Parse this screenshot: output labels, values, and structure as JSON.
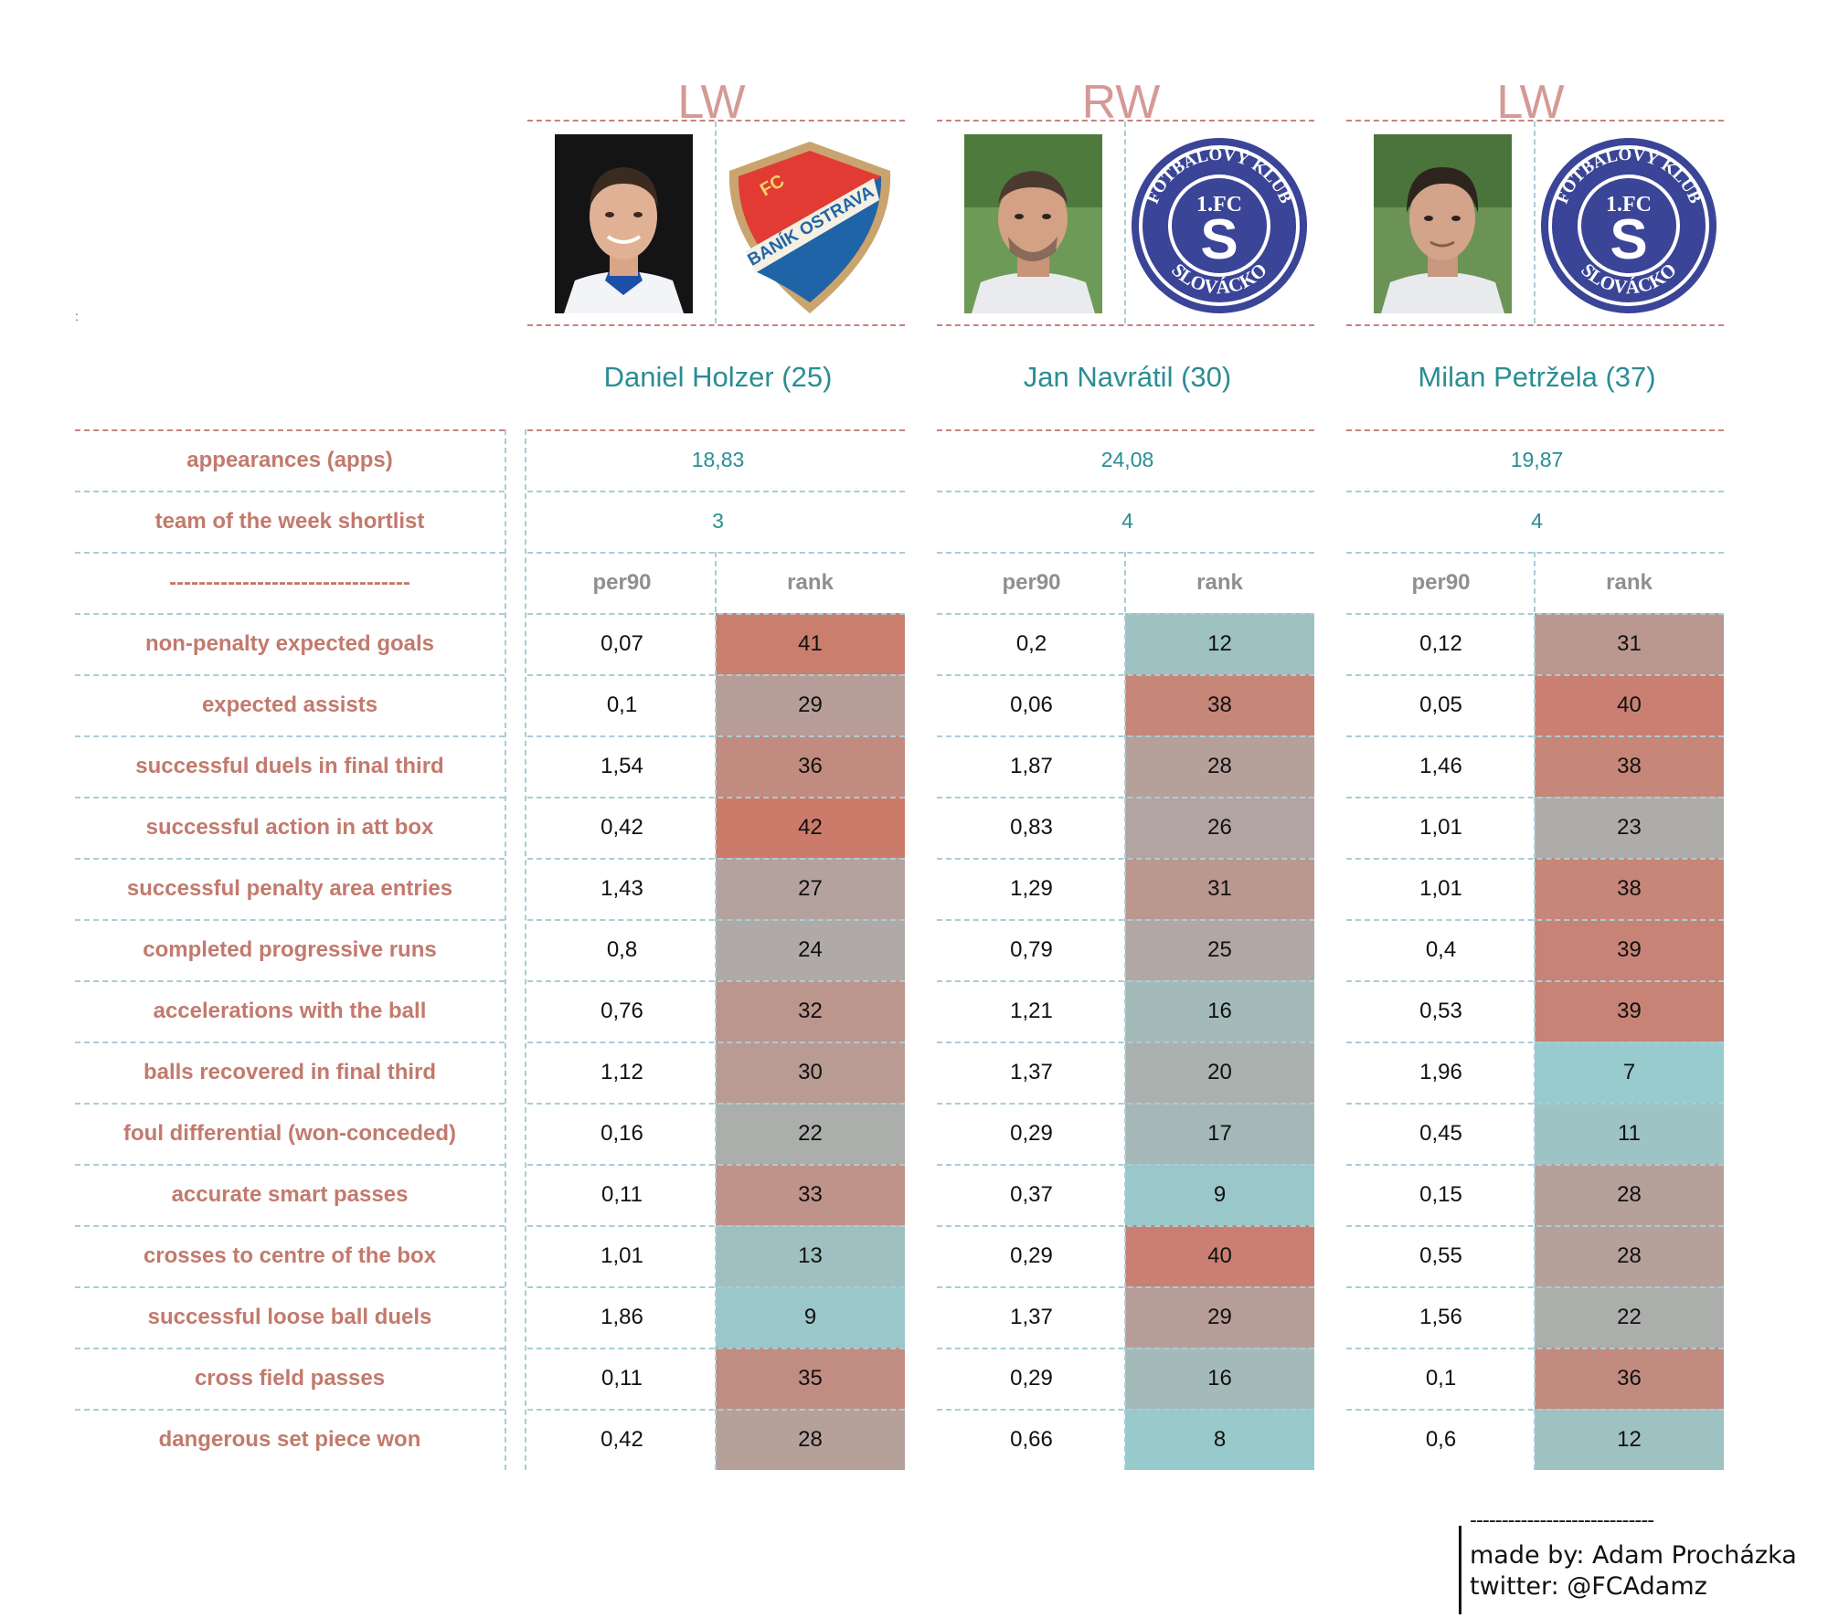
{
  "players": [
    {
      "position": "LW",
      "name": "Daniel Holzer (25)",
      "club": "Baník Ostrava",
      "crest_text_top": "FC",
      "crest_text_main": "BANÍK OSTRAVA",
      "apps": "18,83",
      "totw": "3"
    },
    {
      "position": "RW",
      "name": "Jan Navrátil (30)",
      "club": "1.FC Slovácko",
      "crest_text_top": "FOTBALOVÝ KLUB",
      "crest_text_main": "SLOVÁCKO",
      "crest_text_fc": "1.FC",
      "crest_text_s": "S",
      "apps": "24,08",
      "totw": "4"
    },
    {
      "position": "LW",
      "name": "Milan Petržela (37)",
      "club": "1.FC Slovácko",
      "crest_text_top": "FOTBALOVÝ KLUB",
      "crest_text_main": "SLOVÁCKO",
      "crest_text_fc": "1.FC",
      "crest_text_s": "S",
      "apps": "19,87",
      "totw": "4"
    }
  ],
  "labels": {
    "apps": "appearances (apps)",
    "totw": "team of the week shortlist",
    "divider": "---------------------------------",
    "per90": "per90",
    "rank": "rank"
  },
  "small_mark": ":",
  "chart_data": {
    "type": "table",
    "metrics": [
      "non-penalty expected goals",
      "expected assists",
      "successful duels in final third",
      "successful action in att box",
      "successful penalty area entries",
      "completed progressive runs",
      "accelerations with the ball",
      "balls recovered in final third",
      "foul differential (won-conceded)",
      "accurate smart passes",
      "crosses to centre of the box",
      "successful loose ball duels",
      "cross field passes",
      "dangerous set piece won"
    ],
    "per90": [
      [
        "0,07",
        "0,1",
        "1,54",
        "0,42",
        "1,43",
        "0,8",
        "0,76",
        "1,12",
        "0,16",
        "0,11",
        "1,01",
        "1,86",
        "0,11",
        "0,42"
      ],
      [
        "0,2",
        "0,06",
        "1,87",
        "0,83",
        "1,29",
        "0,79",
        "1,21",
        "1,37",
        "0,29",
        "0,37",
        "0,29",
        "1,37",
        "0,29",
        "0,66"
      ],
      [
        "0,12",
        "0,05",
        "1,46",
        "1,01",
        "1,01",
        "0,4",
        "0,53",
        "1,96",
        "0,45",
        "0,15",
        "0,55",
        "1,56",
        "0,1",
        "0,6"
      ]
    ],
    "rank": [
      [
        41,
        29,
        36,
        42,
        27,
        24,
        32,
        30,
        22,
        33,
        13,
        9,
        35,
        28
      ],
      [
        12,
        38,
        28,
        26,
        31,
        25,
        16,
        20,
        17,
        9,
        40,
        29,
        16,
        8
      ],
      [
        31,
        40,
        38,
        23,
        38,
        39,
        39,
        7,
        11,
        28,
        28,
        22,
        36,
        12
      ]
    ],
    "rank_scale": {
      "min": 7,
      "max": 42,
      "low_color": "#97cbcd",
      "mid_color": "#b0a9a6",
      "high_color": "#cc7b6b"
    }
  },
  "credit": {
    "line": "-----------------------------",
    "author": "made by: Adam Procházka",
    "twitter": "twitter: @FCAdamz"
  },
  "colors": {
    "label": "#c27a6d",
    "name": "#2a8d94",
    "position": "#d49a96"
  }
}
